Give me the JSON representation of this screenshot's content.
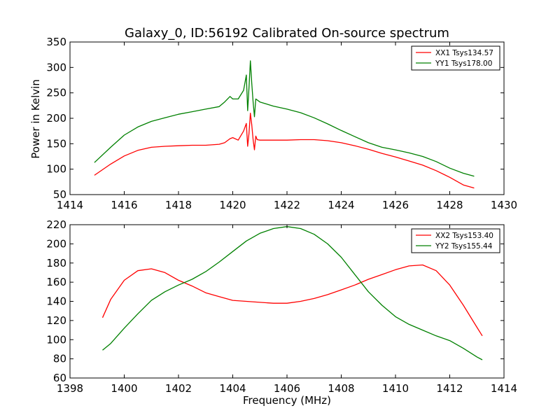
{
  "chart_data": [
    {
      "type": "line",
      "title": "Galaxy_0, ID:56192 Calibrated On-source spectrum",
      "xlabel": "",
      "ylabel": "Power in Kelvin",
      "xlim": [
        1414,
        1430
      ],
      "ylim": [
        50,
        350
      ],
      "xticks": [
        "1414",
        "1416",
        "1418",
        "1420",
        "1422",
        "1424",
        "1426",
        "1428",
        "1430"
      ],
      "yticks": [
        "50",
        "100",
        "150",
        "200",
        "250",
        "300",
        "350"
      ],
      "legend_position": "top-right",
      "series": [
        {
          "name": "XX1 Tsys134.57",
          "color": "#ff0000",
          "x": [
            1414.9,
            1415.5,
            1416.0,
            1416.5,
            1417.0,
            1417.5,
            1418.0,
            1418.5,
            1419.0,
            1419.5,
            1419.7,
            1419.9,
            1420.0,
            1420.2,
            1420.4,
            1420.5,
            1420.55,
            1420.6,
            1420.65,
            1420.7,
            1420.75,
            1420.8,
            1420.85,
            1420.9,
            1421.0,
            1421.5,
            1422.0,
            1422.5,
            1423.0,
            1423.5,
            1424.0,
            1424.5,
            1425.0,
            1425.5,
            1426.0,
            1426.5,
            1427.0,
            1427.5,
            1428.0,
            1428.5,
            1428.9
          ],
          "y": [
            88,
            110,
            126,
            137,
            143,
            145,
            146,
            147,
            147,
            149,
            152,
            160,
            162,
            157,
            175,
            190,
            145,
            170,
            210,
            188,
            158,
            138,
            165,
            158,
            157,
            157,
            157,
            158,
            158,
            156,
            152,
            146,
            139,
            131,
            124,
            116,
            108,
            97,
            84,
            69,
            63
          ]
        },
        {
          "name": "YY1 Tsys178.00",
          "color": "#008000",
          "x": [
            1414.9,
            1415.5,
            1416.0,
            1416.5,
            1417.0,
            1417.5,
            1418.0,
            1418.5,
            1419.0,
            1419.5,
            1419.7,
            1419.9,
            1420.0,
            1420.2,
            1420.4,
            1420.5,
            1420.55,
            1420.6,
            1420.65,
            1420.7,
            1420.75,
            1420.8,
            1420.85,
            1420.9,
            1421.0,
            1421.5,
            1422.0,
            1422.5,
            1423.0,
            1423.5,
            1424.0,
            1424.5,
            1425.0,
            1425.5,
            1426.0,
            1426.5,
            1427.0,
            1427.5,
            1428.0,
            1428.5,
            1428.9
          ],
          "y": [
            113,
            143,
            167,
            183,
            194,
            201,
            208,
            213,
            218,
            223,
            232,
            243,
            238,
            238,
            255,
            285,
            215,
            260,
            313,
            270,
            232,
            203,
            238,
            236,
            232,
            224,
            218,
            211,
            201,
            189,
            176,
            164,
            152,
            143,
            138,
            132,
            125,
            115,
            102,
            92,
            86
          ]
        }
      ]
    },
    {
      "type": "line",
      "title": "",
      "xlabel": "Frequency (MHz)",
      "ylabel": "",
      "xlim": [
        1398,
        1414
      ],
      "ylim": [
        60,
        220
      ],
      "xticks": [
        "1398",
        "1400",
        "1402",
        "1404",
        "1406",
        "1408",
        "1410",
        "1412",
        "1414"
      ],
      "yticks": [
        "60",
        "80",
        "100",
        "120",
        "140",
        "160",
        "180",
        "200",
        "220"
      ],
      "legend_position": "top-right",
      "series": [
        {
          "name": "XX2 Tsys153.40",
          "color": "#ff0000",
          "x": [
            1399.2,
            1399.5,
            1400.0,
            1400.5,
            1401.0,
            1401.5,
            1402.0,
            1402.5,
            1403.0,
            1403.5,
            1404.0,
            1404.5,
            1405.0,
            1405.5,
            1406.0,
            1406.5,
            1407.0,
            1407.5,
            1408.0,
            1408.5,
            1409.0,
            1409.5,
            1410.0,
            1410.5,
            1411.0,
            1411.5,
            1412.0,
            1412.5,
            1413.0,
            1413.2
          ],
          "y": [
            123,
            142,
            162,
            172,
            174,
            170,
            162,
            156,
            149,
            145,
            141,
            140,
            139,
            138,
            138,
            140,
            143,
            147,
            152,
            157,
            163,
            168,
            173,
            177,
            178,
            172,
            157,
            136,
            113,
            104
          ]
        },
        {
          "name": "YY2 Tsys155.44",
          "color": "#008000",
          "x": [
            1399.2,
            1399.5,
            1400.0,
            1400.5,
            1401.0,
            1401.5,
            1402.0,
            1402.5,
            1403.0,
            1403.5,
            1404.0,
            1404.5,
            1405.0,
            1405.5,
            1406.0,
            1406.5,
            1407.0,
            1407.5,
            1408.0,
            1408.5,
            1409.0,
            1409.5,
            1410.0,
            1410.5,
            1411.0,
            1411.5,
            1412.0,
            1412.5,
            1413.0,
            1413.2
          ],
          "y": [
            89,
            96,
            112,
            127,
            141,
            150,
            157,
            163,
            171,
            181,
            192,
            203,
            211,
            216,
            218,
            216,
            210,
            200,
            186,
            168,
            150,
            136,
            124,
            116,
            110,
            104,
            99,
            91,
            82,
            79
          ]
        }
      ]
    }
  ]
}
